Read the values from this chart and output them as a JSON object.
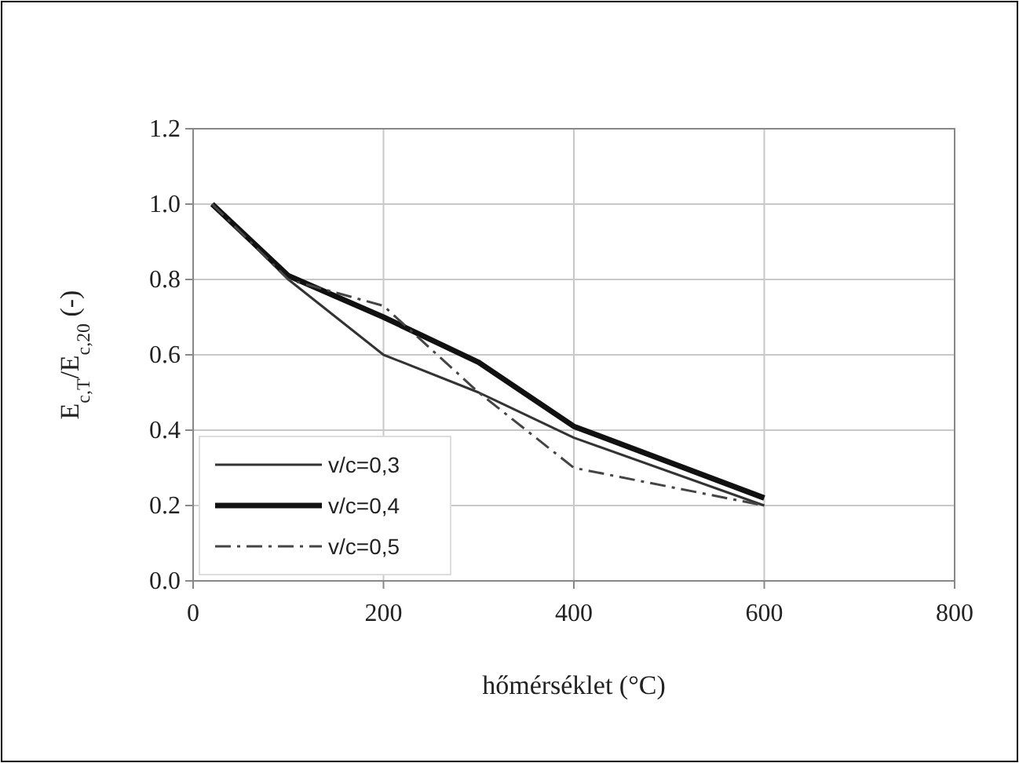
{
  "chart_data": {
    "type": "line",
    "xlabel": "hőmérséklet (°C)",
    "ylabel": "E$_{c,T}$/E$_{c,20}$ (-)",
    "x": [
      20,
      100,
      200,
      300,
      400,
      600
    ],
    "series": [
      {
        "name": "v/c=0,3",
        "color": "#333333",
        "values": [
          1.0,
          0.8,
          0.6,
          0.5,
          0.38,
          0.2
        ],
        "line_style": "solid"
      },
      {
        "name": "v/c=0,4",
        "color": "#111111",
        "values": [
          1.0,
          0.81,
          0.7,
          0.58,
          0.41,
          0.22
        ],
        "line_style": "solid"
      },
      {
        "name": "v/c=0,5",
        "color": "#444444",
        "values": [
          1.0,
          0.8,
          0.73,
          0.5,
          0.3,
          0.2
        ],
        "line_style": "dashed"
      }
    ],
    "xlim": [
      0,
      800
    ],
    "xticks": [
      0,
      200,
      400,
      600,
      800
    ],
    "ylim": [
      0,
      1.2
    ],
    "yticks": [
      {
        "value": 0,
        "label": "0.0"
      },
      0.2,
      0.4,
      0.6,
      0.8,
      {
        "value": 1,
        "label": "1.0"
      },
      1.2
    ],
    "grid": true,
    "legend": "bottom left",
    "marker": "none"
  }
}
